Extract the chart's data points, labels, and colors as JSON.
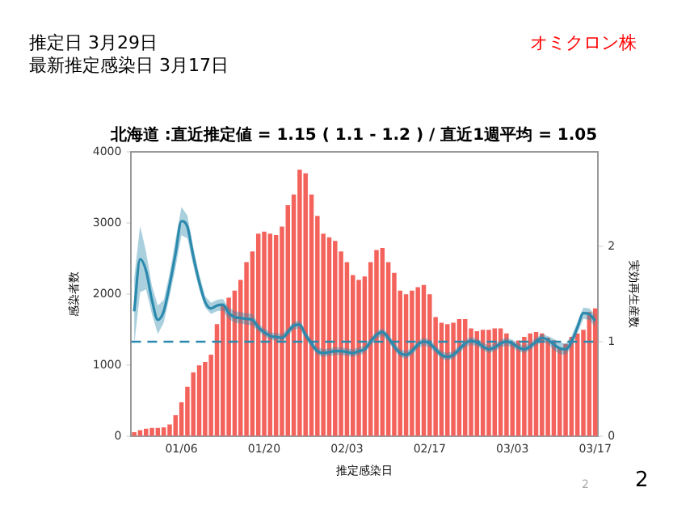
{
  "chart_data": {
    "type": "bar",
    "title": "北海道 :直近推定値 = 1.15 ( 1.1 - 1.2 ) / 直近1週平均 = 1.05",
    "xlabel": "推定感染日",
    "ylabel": "感染者数",
    "y2label": "実効再生産数",
    "annotations": [
      "推定日  3月29日",
      "最新推定感染日  3月17日",
      "オミクロン株",
      "2",
      "2"
    ],
    "categories": [
      null,
      null,
      null,
      null,
      null,
      null,
      null,
      null,
      "01/06",
      null,
      null,
      null,
      null,
      null,
      null,
      null,
      null,
      null,
      null,
      null,
      null,
      null,
      "01/20",
      null,
      null,
      null,
      null,
      null,
      null,
      null,
      null,
      null,
      null,
      null,
      null,
      null,
      "02/03",
      null,
      null,
      null,
      null,
      null,
      null,
      null,
      null,
      null,
      null,
      null,
      null,
      null,
      "02/17",
      null,
      null,
      null,
      null,
      null,
      null,
      null,
      null,
      null,
      null,
      null,
      null,
      null,
      "03/03",
      null,
      null,
      null,
      null,
      null,
      null,
      null,
      null,
      null,
      null,
      null,
      null,
      null,
      "03/17"
    ],
    "series": [
      {
        "color": "#f4625c",
        "values": [
          60,
          90,
          110,
          120,
          120,
          130,
          170,
          300,
          480,
          700,
          900,
          1000,
          1050,
          1150,
          1580,
          1850,
          1950,
          2050,
          2200,
          2450,
          2600,
          2850,
          2880,
          2850,
          2830,
          2950,
          3250,
          3400,
          3750,
          3700,
          3400,
          3100,
          2850,
          2800,
          2750,
          2600,
          2450,
          2270,
          2200,
          2250,
          2450,
          2620,
          2650,
          2450,
          2300,
          2050,
          2000,
          2050,
          2100,
          2130,
          2000,
          1680,
          1600,
          1580,
          1600,
          1650,
          1650,
          1520,
          1480,
          1500,
          1500,
          1520,
          1520,
          1450,
          1330,
          1350,
          1400,
          1450,
          1470,
          1450,
          1390,
          1350,
          1250,
          1300,
          1400,
          1450,
          1500,
          1750,
          1800
        ]
      },
      {
        "type": "line",
        "axis": "y2",
        "color": "#2b89ad",
        "values": [
          1.32,
          1.87,
          1.75,
          1.44,
          1.23,
          1.32,
          1.6,
          1.93,
          2.27,
          2.21,
          1.9,
          1.63,
          1.42,
          1.35,
          1.38,
          1.39,
          1.3,
          1.26,
          1.25,
          1.24,
          1.23,
          1.15,
          1.1,
          1.06,
          1.05,
          1.04,
          1.1,
          1.17,
          1.18,
          1.07,
          0.98,
          0.9,
          0.88,
          0.89,
          0.9,
          0.9,
          0.89,
          0.88,
          0.9,
          0.92,
          1.0,
          1.07,
          1.1,
          1.04,
          0.95,
          0.88,
          0.86,
          0.9,
          0.97,
          1.0,
          0.98,
          0.92,
          0.86,
          0.84,
          0.86,
          0.92,
          0.98,
          1.01,
          0.99,
          0.95,
          0.92,
          0.94,
          0.98,
          1.0,
          0.98,
          0.94,
          0.92,
          0.95,
          1.0,
          1.04,
          1.02,
          0.97,
          0.93,
          0.92,
          1.0,
          1.15,
          1.3,
          1.29,
          1.22
        ],
        "lower": [
          0.97,
          1.52,
          1.55,
          1.29,
          1.08,
          1.2,
          1.48,
          1.78,
          2.12,
          2.09,
          1.8,
          1.55,
          1.36,
          1.29,
          1.32,
          1.33,
          1.24,
          1.2,
          1.19,
          1.18,
          1.17,
          1.11,
          1.06,
          1.02,
          1.01,
          1.0,
          1.06,
          1.13,
          1.14,
          1.03,
          0.94,
          0.86,
          0.84,
          0.85,
          0.86,
          0.86,
          0.85,
          0.84,
          0.86,
          0.88,
          0.96,
          1.03,
          1.06,
          1.0,
          0.91,
          0.84,
          0.82,
          0.86,
          0.93,
          0.96,
          0.94,
          0.88,
          0.82,
          0.8,
          0.82,
          0.88,
          0.94,
          0.97,
          0.95,
          0.91,
          0.88,
          0.9,
          0.94,
          0.96,
          0.94,
          0.9,
          0.88,
          0.91,
          0.96,
          1.0,
          0.98,
          0.91,
          0.87,
          0.86,
          0.94,
          1.09,
          1.24,
          1.23,
          1.16
        ],
        "upper": [
          1.67,
          2.22,
          1.95,
          1.59,
          1.38,
          1.44,
          1.72,
          2.08,
          2.42,
          2.33,
          2.0,
          1.71,
          1.48,
          1.41,
          1.44,
          1.45,
          1.36,
          1.32,
          1.31,
          1.3,
          1.29,
          1.19,
          1.14,
          1.1,
          1.09,
          1.08,
          1.14,
          1.21,
          1.22,
          1.11,
          1.02,
          0.94,
          0.92,
          0.93,
          0.94,
          0.94,
          0.93,
          0.92,
          0.94,
          0.96,
          1.04,
          1.11,
          1.14,
          1.08,
          0.99,
          0.92,
          0.9,
          0.94,
          1.01,
          1.04,
          1.02,
          0.96,
          0.9,
          0.88,
          0.9,
          0.96,
          1.02,
          1.05,
          1.03,
          0.99,
          0.96,
          0.98,
          1.02,
          1.04,
          1.02,
          0.98,
          0.96,
          0.99,
          1.04,
          1.08,
          1.06,
          1.03,
          0.99,
          0.98,
          1.06,
          1.21,
          1.36,
          1.35,
          1.28
        ]
      }
    ],
    "ylim": [
      0,
      4000
    ],
    "yticks": [
      0,
      1000,
      2000,
      3000,
      4000
    ],
    "y2lim": [
      0,
      3
    ],
    "y2ticks": [
      0,
      1,
      2
    ],
    "ref_lines": [
      {
        "axis": "y2",
        "value": 1,
        "color": "#2b89ad",
        "line_style": "dashed"
      }
    ],
    "grid": false,
    "legend": false
  }
}
